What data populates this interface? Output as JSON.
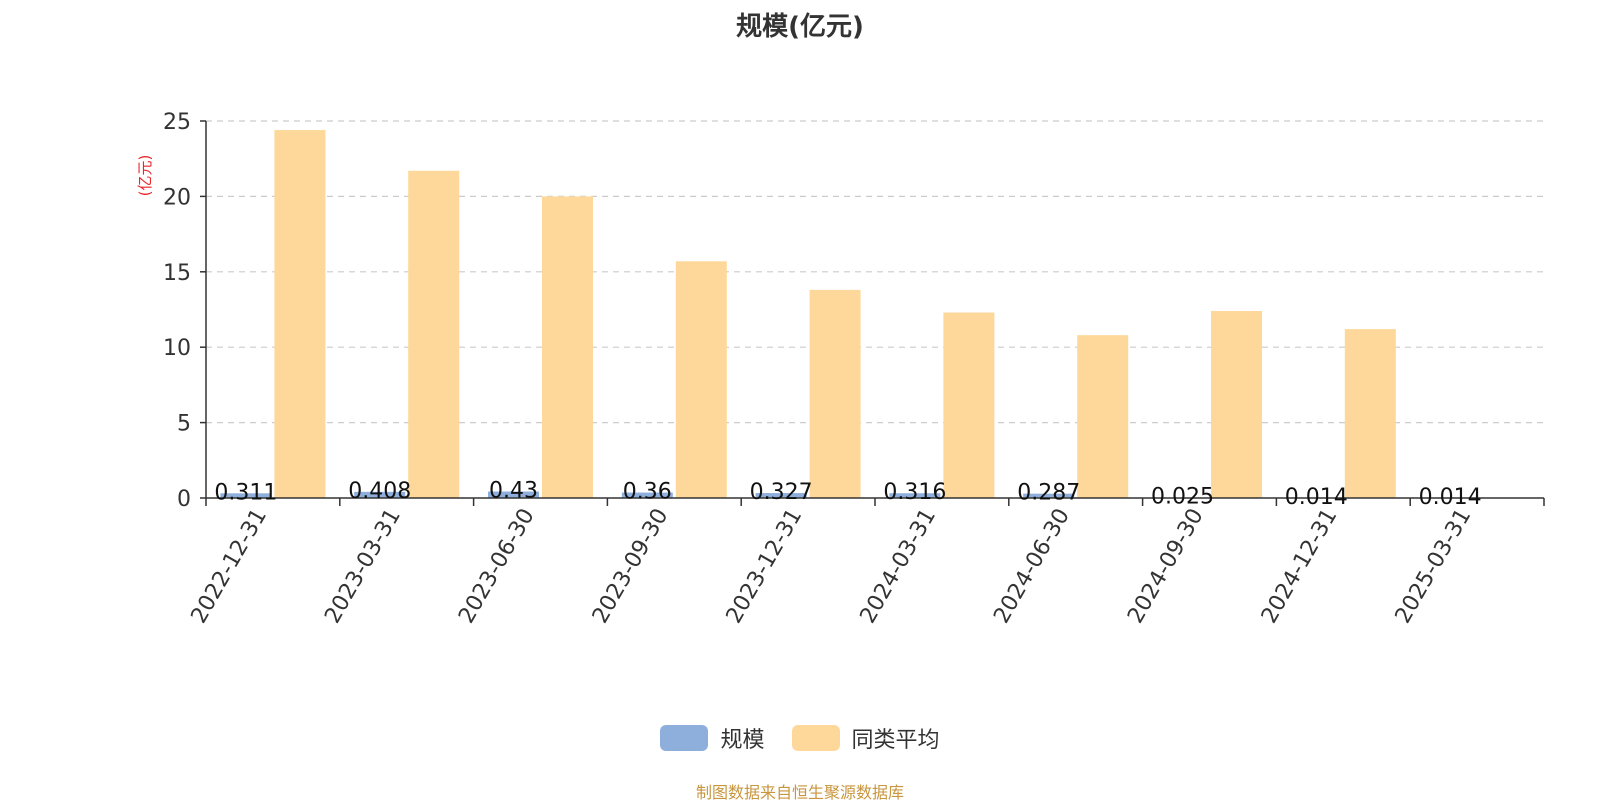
{
  "chart_data": {
    "type": "bar",
    "title": "规模(亿元)",
    "ylabel": "(亿元)",
    "xlabel": "",
    "ylim": [
      0,
      25
    ],
    "yticks": [
      0,
      5,
      10,
      15,
      20,
      25
    ],
    "grid": true,
    "legend_position": "bottom",
    "categories": [
      "2022-12-31",
      "2023-03-31",
      "2023-06-30",
      "2023-09-30",
      "2023-12-31",
      "2024-03-31",
      "2024-06-30",
      "2024-09-30",
      "2024-12-31",
      "2025-03-31"
    ],
    "series": [
      {
        "name": "规模",
        "color": "#8eaedb",
        "values": [
          0.311,
          0.408,
          0.43,
          0.36,
          0.327,
          0.316,
          0.287,
          0.025,
          0.014,
          0.014
        ],
        "labels": [
          "0.311",
          "0.408",
          "0.43",
          "0.36",
          "0.327",
          "0.316",
          "0.287",
          "0.025",
          "0.014",
          "0.014"
        ]
      },
      {
        "name": "同类平均",
        "color": "#fdd89a",
        "values": [
          24.4,
          21.7,
          20.0,
          15.7,
          13.8,
          12.3,
          10.8,
          12.4,
          11.2,
          null
        ]
      }
    ]
  },
  "legend": {
    "items": [
      {
        "label": "规模",
        "color": "#8eaedb"
      },
      {
        "label": "同类平均",
        "color": "#fdd89a"
      }
    ]
  },
  "footer": {
    "source": "制图数据来自恒生聚源数据库"
  },
  "colors": {
    "axis": "#333333",
    "grid": "#cccccc",
    "ylabel": "#e8262b",
    "source": "#c8963e"
  }
}
